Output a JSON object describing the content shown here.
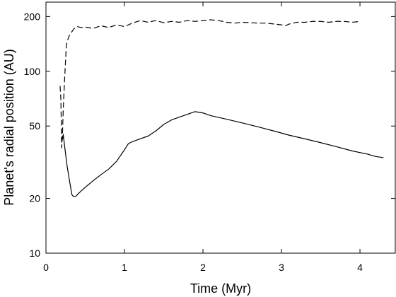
{
  "chart_data": {
    "type": "line",
    "xlabel": "Time (Myr)",
    "ylabel": "Planet's radial position (AU)",
    "xlim": [
      0,
      4.45
    ],
    "ylim": [
      10,
      240
    ],
    "y_scale": "log",
    "grid": false,
    "legend": "none",
    "xticks": [
      {
        "value": 0,
        "label": "0"
      },
      {
        "value": 1,
        "label": "1"
      },
      {
        "value": 2,
        "label": "2"
      },
      {
        "value": 3,
        "label": "3"
      },
      {
        "value": 4,
        "label": "4"
      }
    ],
    "yticks": [
      {
        "value": 10,
        "label": "10"
      },
      {
        "value": 20,
        "label": "20"
      },
      {
        "value": 50,
        "label": "50"
      },
      {
        "value": 100,
        "label": "100"
      },
      {
        "value": 200,
        "label": "200"
      }
    ],
    "series": [
      {
        "style": "dashed",
        "color": "#000000",
        "x": [
          0.18,
          0.19,
          0.2,
          0.21,
          0.22,
          0.24,
          0.26,
          0.28,
          0.3,
          0.33,
          0.36,
          0.4,
          0.45,
          0.5,
          0.6,
          0.7,
          0.8,
          0.9,
          1.0,
          1.1,
          1.2,
          1.3,
          1.4,
          1.5,
          1.6,
          1.7,
          1.8,
          1.9,
          2.0,
          2.1,
          2.2,
          2.3,
          2.4,
          2.5,
          2.6,
          2.7,
          2.8,
          2.9,
          3.0,
          3.05,
          3.1,
          3.2,
          3.3,
          3.4,
          3.5,
          3.6,
          3.7,
          3.8,
          3.9,
          4.0
        ],
        "y": [
          83,
          70,
          38,
          45,
          62,
          95,
          140,
          150,
          158,
          165,
          172,
          176,
          174,
          175,
          172,
          178,
          174,
          180,
          176,
          184,
          190,
          186,
          190,
          185,
          188,
          186,
          190,
          188,
          190,
          192,
          190,
          186,
          184,
          186,
          185,
          184,
          184,
          182,
          180,
          178,
          182,
          186,
          186,
          188,
          188,
          186,
          188,
          188,
          186,
          188
        ]
      },
      {
        "style": "solid",
        "color": "#000000",
        "x": [
          0.21,
          0.22,
          0.24,
          0.27,
          0.3,
          0.33,
          0.35,
          0.38,
          0.4,
          0.45,
          0.5,
          0.6,
          0.7,
          0.8,
          0.9,
          1.0,
          1.05,
          1.1,
          1.2,
          1.3,
          1.4,
          1.5,
          1.6,
          1.7,
          1.8,
          1.9,
          2.0,
          2.1,
          2.3,
          2.5,
          2.7,
          2.9,
          3.1,
          3.3,
          3.5,
          3.7,
          3.9,
          4.1,
          4.2,
          4.3
        ],
        "y": [
          42,
          45,
          38,
          30,
          25,
          21,
          20.5,
          20.5,
          21,
          22,
          23,
          25,
          27,
          29,
          32,
          37,
          40,
          41,
          42.5,
          44,
          47,
          51,
          54,
          56,
          58,
          60,
          59,
          57,
          54.5,
          52,
          49.5,
          47,
          44.5,
          42.5,
          40.5,
          38.5,
          36.5,
          35,
          34,
          33.5
        ]
      }
    ]
  }
}
